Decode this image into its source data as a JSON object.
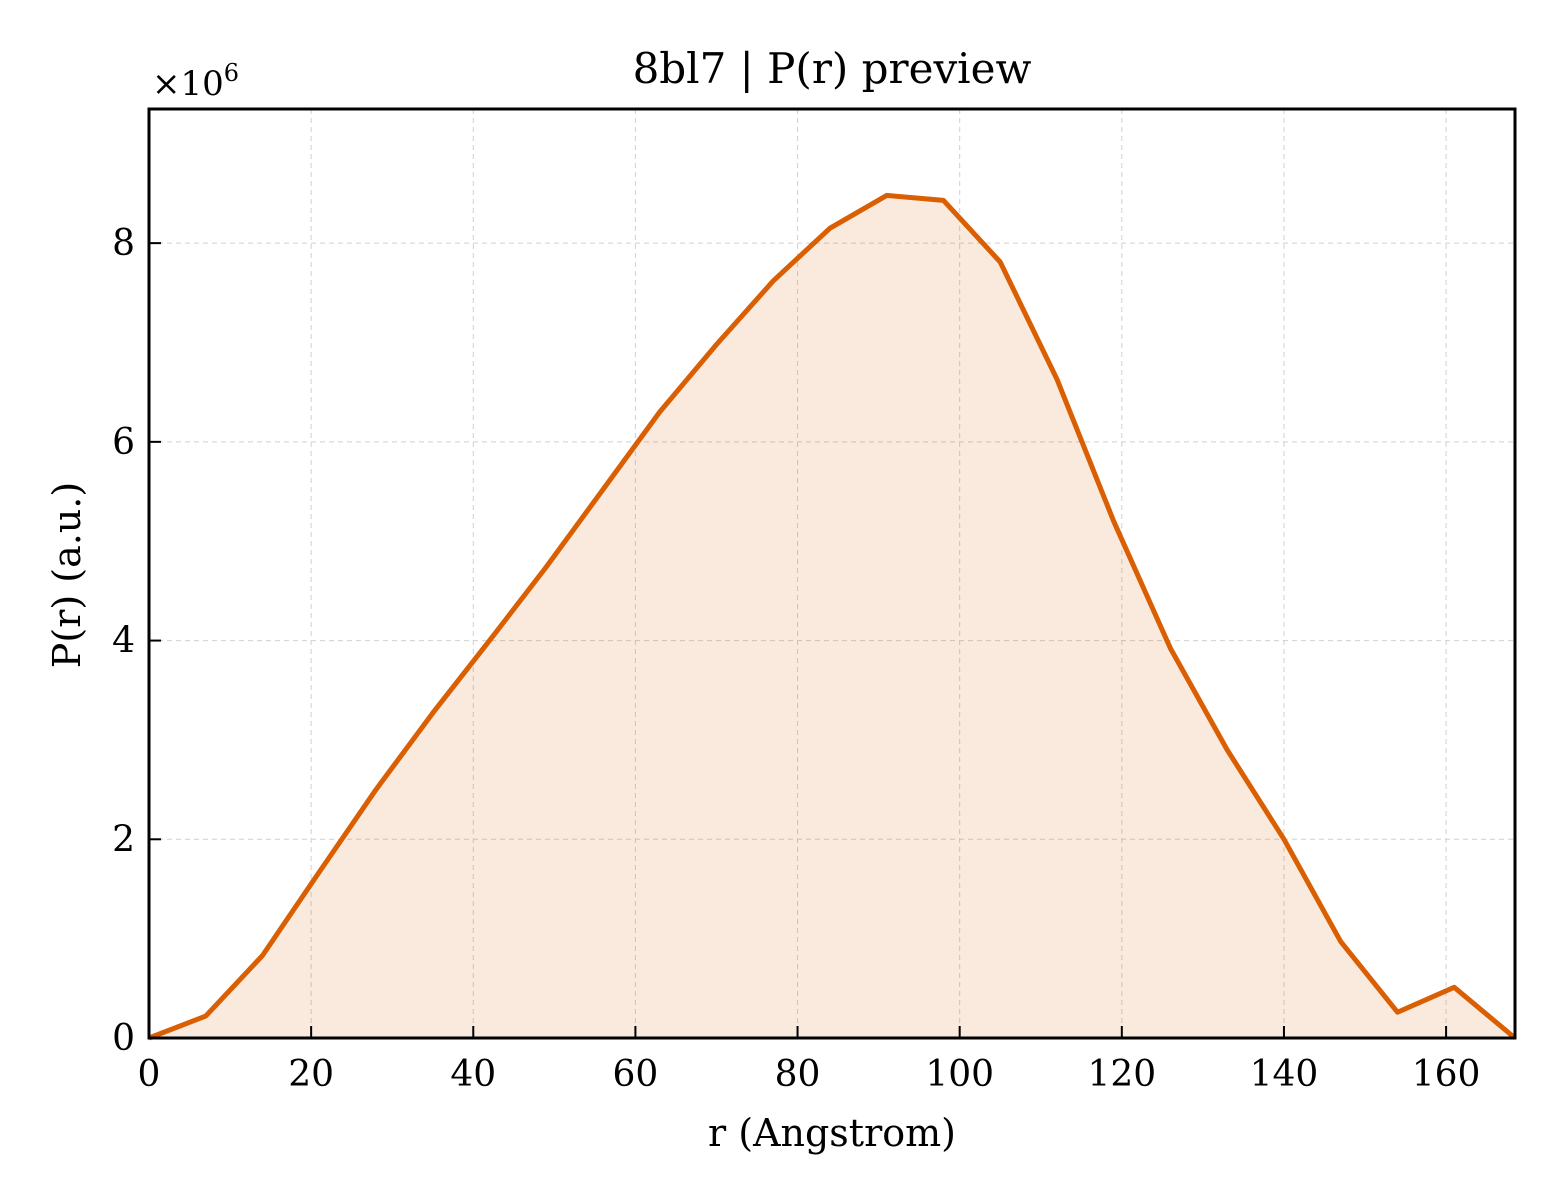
{
  "chart_data": {
    "type": "area",
    "title": "8bl7 | P(r) preview",
    "xlabel": "r (Angstrom)",
    "ylabel": "P(r) (a.u.)",
    "y_multiplier": {
      "base": "×10",
      "exponent": "6"
    },
    "xlim": [
      0,
      168.5
    ],
    "ylim": [
      0,
      9.35
    ],
    "x_ticks": [
      0,
      20,
      40,
      60,
      80,
      100,
      120,
      140,
      160
    ],
    "x_tick_labels": [
      "0",
      "20",
      "40",
      "60",
      "80",
      "100",
      "120",
      "140",
      "160"
    ],
    "y_ticks": [
      0,
      2,
      4,
      6,
      8
    ],
    "y_tick_labels": [
      "0",
      "2",
      "4",
      "6",
      "8"
    ],
    "grid": true,
    "series": [
      {
        "color": "#d95f02",
        "fill_color": "#d95f02",
        "fill_opacity": 0.13,
        "x": [
          0,
          7,
          14,
          21,
          28,
          35,
          42,
          49,
          56,
          63,
          70,
          77,
          84,
          91,
          98,
          105,
          112,
          119,
          126,
          133,
          140,
          147,
          154,
          161,
          168.5
        ],
        "y": [
          0,
          0.22,
          0.83,
          1.67,
          2.5,
          3.27,
          4.0,
          4.74,
          5.52,
          6.3,
          6.98,
          7.62,
          8.15,
          8.48,
          8.43,
          7.81,
          6.63,
          5.2,
          3.92,
          2.9,
          2.0,
          0.97,
          0.26,
          0.51,
          0
        ]
      }
    ]
  }
}
